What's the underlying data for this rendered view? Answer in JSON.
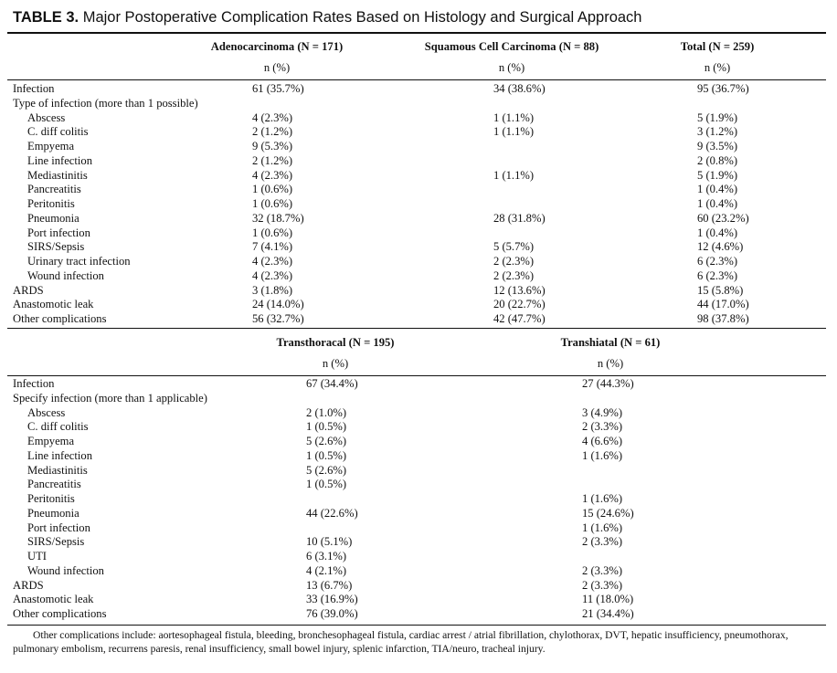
{
  "title": {
    "label": "TABLE 3.",
    "text": "Major Postoperative Complication Rates Based on Histology and Surgical Approach"
  },
  "table1": {
    "headers": [
      "Adenocarcinoma (N = 171)",
      "Squamous Cell Carcinoma (N = 88)",
      "Total (N = 259)"
    ],
    "subheaders": [
      "n (%)",
      "n (%)",
      "n (%)"
    ],
    "rows": [
      {
        "label": "Infection",
        "indent": false,
        "cells": [
          "61 (35.7%)",
          "34 (38.6%)",
          "95 (36.7%)"
        ]
      },
      {
        "label": "Type of infection (more than 1 possible)",
        "indent": false,
        "cells": [
          "",
          "",
          ""
        ]
      },
      {
        "label": "Abscess",
        "indent": true,
        "cells": [
          "4 (2.3%)",
          "1 (1.1%)",
          "5 (1.9%)"
        ]
      },
      {
        "label": "C. diff colitis",
        "indent": true,
        "cells": [
          "2 (1.2%)",
          "1 (1.1%)",
          "3 (1.2%)"
        ]
      },
      {
        "label": "Empyema",
        "indent": true,
        "cells": [
          "9 (5.3%)",
          "",
          "9 (3.5%)"
        ]
      },
      {
        "label": "Line infection",
        "indent": true,
        "cells": [
          "2 (1.2%)",
          "",
          "2 (0.8%)"
        ]
      },
      {
        "label": "Mediastinitis",
        "indent": true,
        "cells": [
          "4 (2.3%)",
          "1 (1.1%)",
          "5 (1.9%)"
        ]
      },
      {
        "label": "Pancreatitis",
        "indent": true,
        "cells": [
          "1 (0.6%)",
          "",
          "1 (0.4%)"
        ]
      },
      {
        "label": "Peritonitis",
        "indent": true,
        "cells": [
          "1 (0.6%)",
          "",
          "1 (0.4%)"
        ]
      },
      {
        "label": "Pneumonia",
        "indent": true,
        "cells": [
          "32 (18.7%)",
          "28 (31.8%)",
          "60 (23.2%)"
        ]
      },
      {
        "label": "Port infection",
        "indent": true,
        "cells": [
          "1 (0.6%)",
          "",
          "1 (0.4%)"
        ]
      },
      {
        "label": "SIRS/Sepsis",
        "indent": true,
        "cells": [
          "7 (4.1%)",
          "5 (5.7%)",
          "12 (4.6%)"
        ]
      },
      {
        "label": "Urinary tract infection",
        "indent": true,
        "cells": [
          "4 (2.3%)",
          "2 (2.3%)",
          "6 (2.3%)"
        ]
      },
      {
        "label": "Wound infection",
        "indent": true,
        "cells": [
          "4 (2.3%)",
          "2 (2.3%)",
          "6 (2.3%)"
        ]
      },
      {
        "label": "ARDS",
        "indent": false,
        "cells": [
          "3 (1.8%)",
          "12 (13.6%)",
          "15 (5.8%)"
        ]
      },
      {
        "label": "Anastomotic leak",
        "indent": false,
        "cells": [
          "24 (14.0%)",
          "20 (22.7%)",
          "44 (17.0%)"
        ]
      },
      {
        "label": "Other complications",
        "indent": false,
        "cells": [
          "56 (32.7%)",
          "42 (47.7%)",
          "98 (37.8%)"
        ]
      }
    ]
  },
  "table2": {
    "headers": [
      "Transthoracal (N = 195)",
      "Transhiatal (N = 61)"
    ],
    "subheaders": [
      "n (%)",
      "n (%)"
    ],
    "rows": [
      {
        "label": "Infection",
        "indent": false,
        "cells": [
          "67 (34.4%)",
          "27 (44.3%)"
        ]
      },
      {
        "label": "Specify infection (more than 1 applicable)",
        "indent": false,
        "cells": [
          "",
          ""
        ]
      },
      {
        "label": "Abscess",
        "indent": true,
        "cells": [
          "2 (1.0%)",
          "3 (4.9%)"
        ]
      },
      {
        "label": "C. diff colitis",
        "indent": true,
        "cells": [
          "1 (0.5%)",
          "2 (3.3%)"
        ]
      },
      {
        "label": "Empyema",
        "indent": true,
        "cells": [
          "5 (2.6%)",
          "4 (6.6%)"
        ]
      },
      {
        "label": "Line infection",
        "indent": true,
        "cells": [
          "1 (0.5%)",
          "1 (1.6%)"
        ]
      },
      {
        "label": "Mediastinitis",
        "indent": true,
        "cells": [
          "5 (2.6%)",
          ""
        ]
      },
      {
        "label": "Pancreatitis",
        "indent": true,
        "cells": [
          "1 (0.5%)",
          ""
        ]
      },
      {
        "label": "Peritonitis",
        "indent": true,
        "cells": [
          "",
          "1 (1.6%)"
        ]
      },
      {
        "label": "Pneumonia",
        "indent": true,
        "cells": [
          "44 (22.6%)",
          "15 (24.6%)"
        ]
      },
      {
        "label": "Port infection",
        "indent": true,
        "cells": [
          "",
          "1 (1.6%)"
        ]
      },
      {
        "label": "SIRS/Sepsis",
        "indent": true,
        "cells": [
          "10 (5.1%)",
          "2 (3.3%)"
        ]
      },
      {
        "label": "UTI",
        "indent": true,
        "cells": [
          "6 (3.1%)",
          ""
        ]
      },
      {
        "label": "Wound infection",
        "indent": true,
        "cells": [
          "4 (2.1%)",
          "2 (3.3%)"
        ]
      },
      {
        "label": "ARDS",
        "indent": false,
        "cells": [
          "13 (6.7%)",
          "2 (3.3%)"
        ]
      },
      {
        "label": "Anastomotic leak",
        "indent": false,
        "cells": [
          "33 (16.9%)",
          "11 (18.0%)"
        ]
      },
      {
        "label": "Other complications",
        "indent": false,
        "cells": [
          "76 (39.0%)",
          "21 (34.4%)"
        ]
      }
    ]
  },
  "footnote": "Other complications include: aortesophageal fistula, bleeding, bronchesophageal fistula, cardiac arrest / atrial fibrillation, chylothorax, DVT, hepatic insufficiency, pneumothorax, pulmonary embolism, recurrens paresis, renal insufficiency, small bowel injury, splenic infarction, TIA/neuro, tracheal injury."
}
